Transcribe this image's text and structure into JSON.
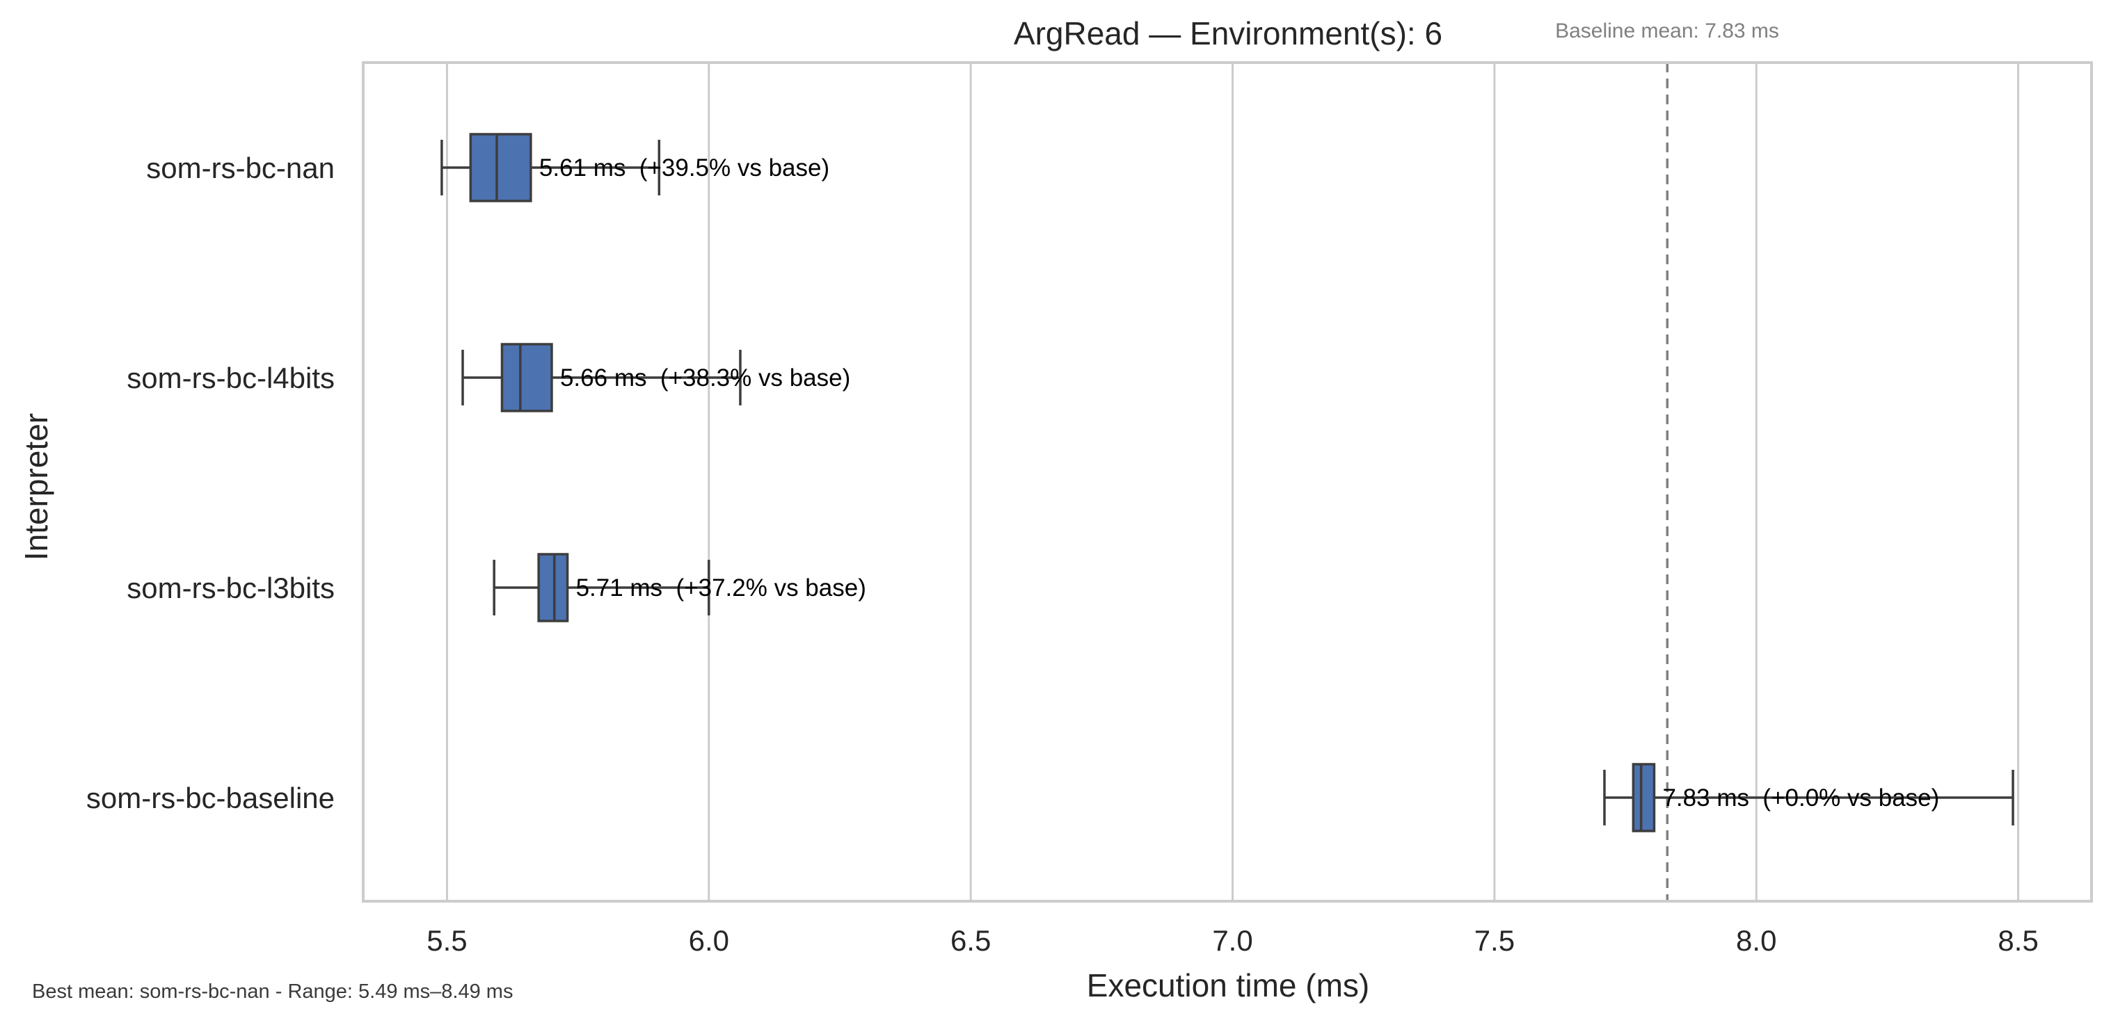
{
  "chart_data": {
    "type": "boxplot",
    "orientation": "horizontal",
    "title": "ArgRead — Environment(s): 6",
    "xlabel": "Execution time (ms)",
    "ylabel": "Interpreter",
    "xlim": [
      5.34,
      8.64
    ],
    "xticks": [
      5.5,
      6.0,
      6.5,
      7.0,
      7.5,
      8.0,
      8.5
    ],
    "xtick_labels": [
      "5.5",
      "6.0",
      "6.5",
      "7.0",
      "7.5",
      "8.0",
      "8.5"
    ],
    "grid": "x",
    "baseline": {
      "value": 7.83,
      "label": "Baseline mean: 7.83 ms"
    },
    "box_color": "#4c72b0",
    "edge_color": "#3d3d3d",
    "series": [
      {
        "category": "som-rs-bc-nan",
        "whisker_low": 5.49,
        "q1": 5.545,
        "median": 5.595,
        "q3": 5.66,
        "whisker_high": 5.905,
        "annotation": "5.61 ms  (+39.5% vs base)"
      },
      {
        "category": "som-rs-bc-l4bits",
        "whisker_low": 5.53,
        "q1": 5.605,
        "median": 5.64,
        "q3": 5.7,
        "whisker_high": 6.06,
        "annotation": "5.66 ms  (+38.3% vs base)"
      },
      {
        "category": "som-rs-bc-l3bits",
        "whisker_low": 5.59,
        "q1": 5.675,
        "median": 5.705,
        "q3": 5.73,
        "whisker_high": 6.0,
        "annotation": "5.71 ms  (+37.2% vs base)"
      },
      {
        "category": "som-rs-bc-baseline",
        "whisker_low": 7.71,
        "q1": 7.765,
        "median": 7.78,
        "q3": 7.805,
        "whisker_high": 8.49,
        "annotation": "7.83 ms  (+0.0% vs base)"
      }
    ],
    "footnote": "Best mean: som-rs-bc-nan - Range: 5.49 ms–8.49 ms"
  }
}
